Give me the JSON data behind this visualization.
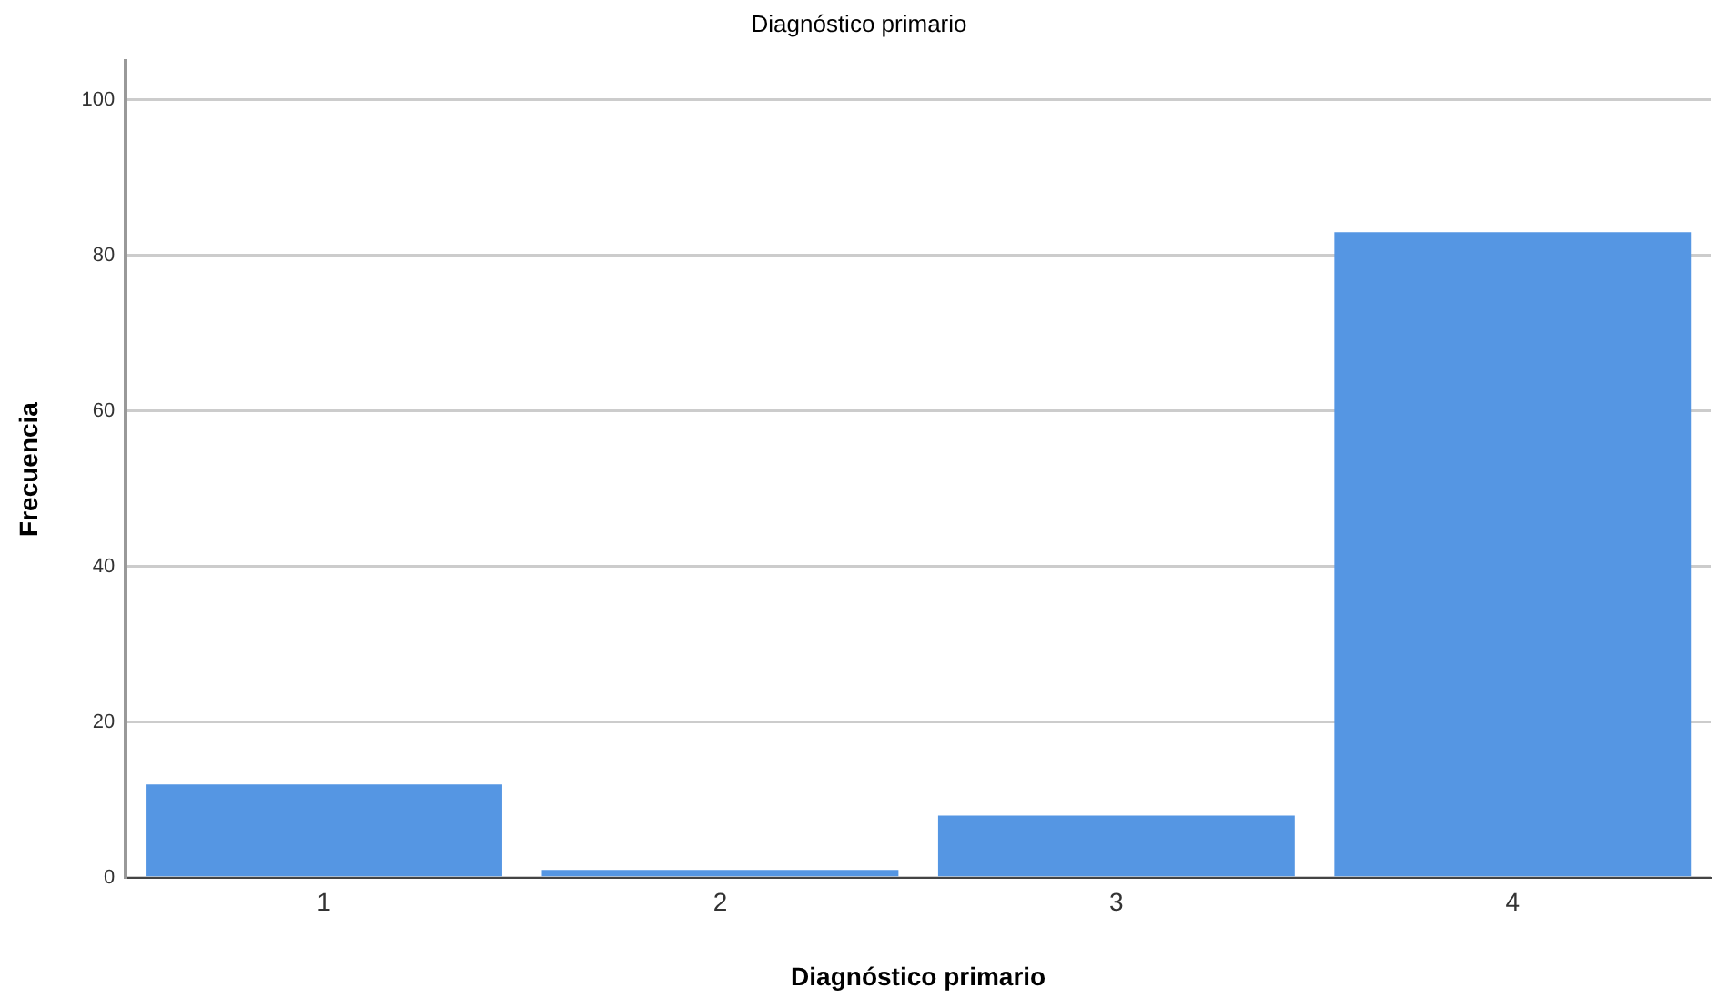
{
  "chart_data": {
    "type": "bar",
    "title": "Diagnóstico primario",
    "xlabel": "Diagnóstico primario",
    "ylabel": "Frecuencia",
    "categories": [
      "1",
      "2",
      "3",
      "4"
    ],
    "values": [
      12,
      1,
      8,
      83
    ],
    "color": "#5596e3",
    "ylim": [
      0,
      105
    ],
    "yticks": [
      0,
      20,
      40,
      60,
      80,
      100
    ],
    "grid": "y",
    "legend": false
  }
}
